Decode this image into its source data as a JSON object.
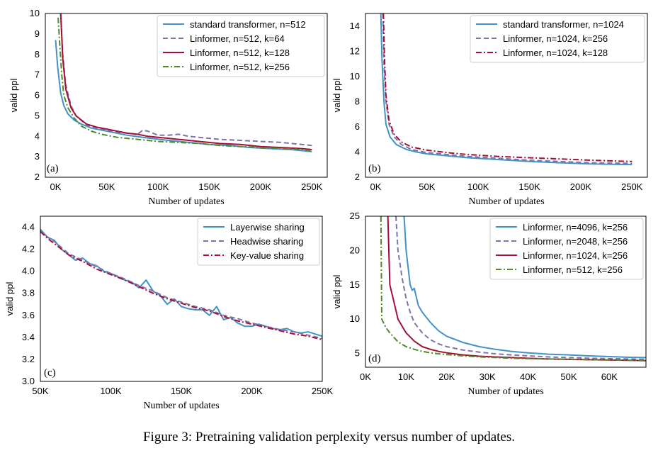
{
  "caption": "Figure 3: Pretraining validation perplexity versus number of updates.",
  "colors": {
    "blue": "#4292c6",
    "purple": "#8073ac",
    "red": "#a50f35",
    "green": "#4d8a2e"
  },
  "chart_data": [
    {
      "type": "line",
      "panel_tag": "(a)",
      "xlabel": "Number of updates",
      "ylabel": "valid ppl",
      "xlim": [
        -10000,
        265000
      ],
      "ylim": [
        2,
        10
      ],
      "xticks": [
        0,
        50000,
        100000,
        150000,
        200000,
        250000
      ],
      "xtick_labels": [
        "0K",
        "50K",
        "100K",
        "150K",
        "200K",
        "250K"
      ],
      "yticks": [
        2,
        3,
        4,
        5,
        6,
        7,
        8,
        9,
        10
      ],
      "ytick_labels": [
        "2",
        "3",
        "4",
        "5",
        "6",
        "7",
        "8",
        "9",
        "10"
      ],
      "legend": "top-right",
      "series": [
        {
          "name": "standard transformer, n=512",
          "color": "blue",
          "dash": "solid",
          "x": [
            0,
            2000,
            5000,
            8000,
            12000,
            18000,
            25000,
            35000,
            50000,
            70000,
            90000,
            110000,
            130000,
            150000,
            170000,
            190000,
            210000,
            230000,
            250000
          ],
          "y": [
            8.7,
            7.4,
            6.1,
            5.5,
            5.1,
            4.8,
            4.6,
            4.4,
            4.25,
            4.05,
            3.92,
            3.8,
            3.7,
            3.6,
            3.55,
            3.45,
            3.4,
            3.35,
            3.25
          ]
        },
        {
          "name": "Linformer, n=512, k=64",
          "color": "purple",
          "dash": "dashed",
          "x": [
            5000,
            7000,
            10000,
            15000,
            20000,
            30000,
            40000,
            50000,
            60000,
            70000,
            80000,
            85000,
            90000,
            100000,
            110000,
            120000,
            130000,
            140000,
            160000,
            180000,
            200000,
            220000,
            240000,
            250000
          ],
          "y": [
            10,
            8,
            6.5,
            5.5,
            5.0,
            4.55,
            4.4,
            4.3,
            4.2,
            4.15,
            4.1,
            4.3,
            4.25,
            4.05,
            4.05,
            4.1,
            4.0,
            3.95,
            3.85,
            3.8,
            3.75,
            3.7,
            3.6,
            3.55
          ]
        },
        {
          "name": "Linformer, n=512, k=128",
          "color": "red",
          "dash": "solid",
          "x": [
            5000,
            7000,
            10000,
            15000,
            20000,
            30000,
            40000,
            50000,
            60000,
            70000,
            80000,
            90000,
            100000,
            110000,
            120000,
            140000,
            160000,
            180000,
            200000,
            220000,
            240000,
            250000
          ],
          "y": [
            10,
            7.8,
            6.3,
            5.4,
            5.0,
            4.6,
            4.45,
            4.35,
            4.25,
            4.15,
            4.1,
            4.0,
            3.95,
            3.9,
            3.85,
            3.75,
            3.65,
            3.6,
            3.5,
            3.45,
            3.4,
            3.35
          ]
        },
        {
          "name": "Linformer, n=512, k=256",
          "color": "green",
          "dash": "dashdot",
          "x": [
            2500,
            4000,
            6000,
            8000,
            12000,
            18000,
            25000,
            35000,
            45000,
            60000,
            80000,
            100000,
            120000,
            140000,
            160000,
            180000,
            200000,
            220000,
            240000,
            250000
          ],
          "y": [
            9.8,
            8.5,
            7.0,
            6.0,
            5.4,
            4.9,
            4.5,
            4.25,
            4.1,
            3.95,
            3.85,
            3.75,
            3.7,
            3.65,
            3.55,
            3.5,
            3.45,
            3.4,
            3.35,
            3.3
          ]
        }
      ]
    },
    {
      "type": "line",
      "panel_tag": "(b)",
      "xlabel": "Number of updates",
      "ylabel": "valid ppl",
      "xlim": [
        -10000,
        265000
      ],
      "ylim": [
        2,
        15
      ],
      "xticks": [
        0,
        50000,
        100000,
        150000,
        200000,
        250000
      ],
      "xtick_labels": [
        "0K",
        "50K",
        "100K",
        "150K",
        "200K",
        "250K"
      ],
      "yticks": [
        2,
        4,
        6,
        8,
        10,
        12,
        14
      ],
      "ytick_labels": [
        "2",
        "4",
        "6",
        "8",
        "10",
        "12",
        "14"
      ],
      "legend": "top-right",
      "series": [
        {
          "name": "standard transformer, n=1024",
          "color": "blue",
          "dash": "solid",
          "x": [
            5000,
            6000,
            8000,
            10000,
            14000,
            20000,
            30000,
            40000,
            50000,
            70000,
            90000,
            120000,
            150000,
            180000,
            210000,
            250000
          ],
          "y": [
            15,
            11.5,
            8.0,
            6.2,
            5.2,
            4.6,
            4.2,
            4.0,
            3.85,
            3.7,
            3.55,
            3.4,
            3.25,
            3.15,
            3.05,
            3.0
          ]
        },
        {
          "name": "Linformer, n=1024, k=256",
          "color": "purple",
          "dash": "dashed",
          "x": [
            7000,
            8000,
            10000,
            13000,
            18000,
            25000,
            35000,
            50000,
            70000,
            90000,
            120000,
            150000,
            180000,
            210000,
            250000
          ],
          "y": [
            15,
            11.0,
            8.0,
            6.2,
            5.2,
            4.6,
            4.2,
            3.95,
            3.8,
            3.65,
            3.5,
            3.35,
            3.25,
            3.15,
            3.1
          ]
        },
        {
          "name": "Linformer, n=1024, k=128",
          "color": "red",
          "dash": "dashdot",
          "x": [
            7500,
            8500,
            10000,
            13000,
            18000,
            25000,
            35000,
            50000,
            70000,
            90000,
            120000,
            150000,
            180000,
            210000,
            250000
          ],
          "y": [
            15,
            11.5,
            8.5,
            6.5,
            5.4,
            4.8,
            4.4,
            4.15,
            3.95,
            3.8,
            3.65,
            3.55,
            3.45,
            3.35,
            3.25
          ]
        }
      ]
    },
    {
      "type": "line",
      "panel_tag": "(c)",
      "xlabel": "Number of updates",
      "ylabel": "valid ppl",
      "xlim": [
        50000,
        250000
      ],
      "ylim": [
        3.0,
        4.5
      ],
      "xticks": [
        50000,
        100000,
        150000,
        200000,
        250000
      ],
      "xtick_labels": [
        "50K",
        "100K",
        "150K",
        "200K",
        "250K"
      ],
      "yticks": [
        3.0,
        3.2,
        3.4,
        3.6,
        3.8,
        4.0,
        4.2,
        4.4
      ],
      "ytick_labels": [
        "3.0",
        "3.2",
        "3.4",
        "3.6",
        "3.8",
        "4.0",
        "4.2",
        "4.4"
      ],
      "legend": "top-right",
      "series": [
        {
          "name": "Layerwise sharing",
          "color": "blue",
          "dash": "solid",
          "x": [
            50000,
            55000,
            60000,
            65000,
            70000,
            75000,
            80000,
            85000,
            90000,
            95000,
            100000,
            105000,
            110000,
            115000,
            120000,
            125000,
            130000,
            135000,
            140000,
            145000,
            150000,
            155000,
            160000,
            165000,
            170000,
            175000,
            180000,
            185000,
            190000,
            195000,
            200000,
            205000,
            210000,
            215000,
            220000,
            225000,
            230000,
            235000,
            240000,
            245000,
            250000
          ],
          "y": [
            4.38,
            4.31,
            4.28,
            4.2,
            4.15,
            4.1,
            4.12,
            4.07,
            4.05,
            4.0,
            3.98,
            3.95,
            3.92,
            3.9,
            3.85,
            3.92,
            3.82,
            3.78,
            3.7,
            3.75,
            3.68,
            3.66,
            3.65,
            3.65,
            3.6,
            3.68,
            3.56,
            3.58,
            3.53,
            3.5,
            3.5,
            3.52,
            3.5,
            3.48,
            3.47,
            3.48,
            3.45,
            3.44,
            3.45,
            3.43,
            3.41
          ]
        },
        {
          "name": "Headwise sharing",
          "color": "purple",
          "dash": "dashed",
          "x": [
            50000,
            55000,
            60000,
            70000,
            80000,
            90000,
            100000,
            110000,
            120000,
            130000,
            140000,
            150000,
            160000,
            170000,
            180000,
            190000,
            200000,
            210000,
            220000,
            230000,
            240000,
            250000
          ],
          "y": [
            4.37,
            4.31,
            4.27,
            4.16,
            4.1,
            4.04,
            3.98,
            3.93,
            3.87,
            3.82,
            3.76,
            3.72,
            3.68,
            3.65,
            3.6,
            3.57,
            3.53,
            3.5,
            3.47,
            3.45,
            3.42,
            3.39
          ]
        },
        {
          "name": "Key-value sharing",
          "color": "red",
          "dash": "dashdot",
          "x": [
            50000,
            55000,
            60000,
            70000,
            80000,
            90000,
            100000,
            110000,
            120000,
            130000,
            140000,
            150000,
            160000,
            170000,
            180000,
            190000,
            200000,
            210000,
            220000,
            230000,
            240000,
            250000
          ],
          "y": [
            4.36,
            4.3,
            4.25,
            4.15,
            4.09,
            4.02,
            3.97,
            3.92,
            3.86,
            3.8,
            3.75,
            3.71,
            3.67,
            3.64,
            3.59,
            3.55,
            3.52,
            3.49,
            3.46,
            3.43,
            3.41,
            3.38
          ]
        }
      ]
    },
    {
      "type": "line",
      "panel_tag": "(d)",
      "xlabel": "Number of updates",
      "ylabel": "valid ppl",
      "xlim": [
        0,
        69000
      ],
      "ylim": [
        3,
        25
      ],
      "xticks": [
        0,
        10000,
        20000,
        30000,
        40000,
        50000,
        60000
      ],
      "xtick_labels": [
        "0K",
        "10K",
        "20K",
        "30K",
        "40K",
        "50K",
        "60K"
      ],
      "yticks": [
        5,
        10,
        15,
        20,
        25
      ],
      "ytick_labels": [
        "5",
        "10",
        "15",
        "20",
        "25"
      ],
      "legend": "top-right",
      "series": [
        {
          "name": "Linformer, n=4096, k=256",
          "color": "blue",
          "dash": "solid",
          "x": [
            9500,
            10000,
            11000,
            11500,
            12000,
            13000,
            14000,
            16000,
            18000,
            20000,
            24000,
            28000,
            32000,
            36000,
            40000,
            45000,
            50000,
            55000,
            60000,
            65000,
            69000
          ],
          "y": [
            25,
            20,
            15,
            14.2,
            14.5,
            12,
            11,
            9.5,
            8.3,
            7.5,
            6.6,
            6.0,
            5.6,
            5.3,
            5.1,
            4.9,
            4.8,
            4.65,
            4.55,
            4.45,
            4.4
          ]
        },
        {
          "name": "Linformer, n=2048, k=256",
          "color": "purple",
          "dash": "dashed",
          "x": [
            7500,
            8000,
            9000,
            10000,
            11000,
            12000,
            14000,
            16000,
            18000,
            20000,
            24000,
            28000,
            32000,
            36000,
            40000,
            45000,
            50000,
            55000,
            60000,
            65000,
            69000
          ],
          "y": [
            25,
            20,
            16,
            13,
            11,
            9.5,
            8.0,
            7.0,
            6.4,
            6.0,
            5.5,
            5.2,
            4.95,
            4.8,
            4.65,
            4.5,
            4.4,
            4.3,
            4.25,
            4.2,
            4.15
          ]
        },
        {
          "name": "Linformer, n=1024, k=256",
          "color": "red",
          "dash": "solid",
          "x": [
            5500,
            6000,
            7000,
            8000,
            10000,
            12000,
            14000,
            16000,
            18000,
            20000,
            24000,
            28000,
            32000,
            36000,
            40000,
            45000,
            50000,
            55000,
            60000,
            65000,
            69000
          ],
          "y": [
            25,
            15,
            12.5,
            10,
            8,
            6.8,
            6.0,
            5.6,
            5.3,
            5.1,
            4.8,
            4.6,
            4.5,
            4.4,
            4.3,
            4.2,
            4.15,
            4.1,
            4.05,
            4.0,
            3.95
          ]
        },
        {
          "name": "Linformer, n=512, k=256",
          "color": "green",
          "dash": "dashdot",
          "x": [
            3800,
            4000,
            5000,
            6000,
            8000,
            10000,
            12000,
            14000,
            16000,
            18000,
            20000,
            24000,
            28000,
            32000,
            36000,
            40000,
            45000,
            50000,
            55000,
            60000,
            65000,
            69000
          ],
          "y": [
            25,
            10,
            8.8,
            8.0,
            6.7,
            6.0,
            5.6,
            5.3,
            5.1,
            4.95,
            4.85,
            4.65,
            4.5,
            4.4,
            4.3,
            4.25,
            4.2,
            4.15,
            4.1,
            4.05,
            4.0,
            3.95
          ]
        }
      ]
    }
  ]
}
